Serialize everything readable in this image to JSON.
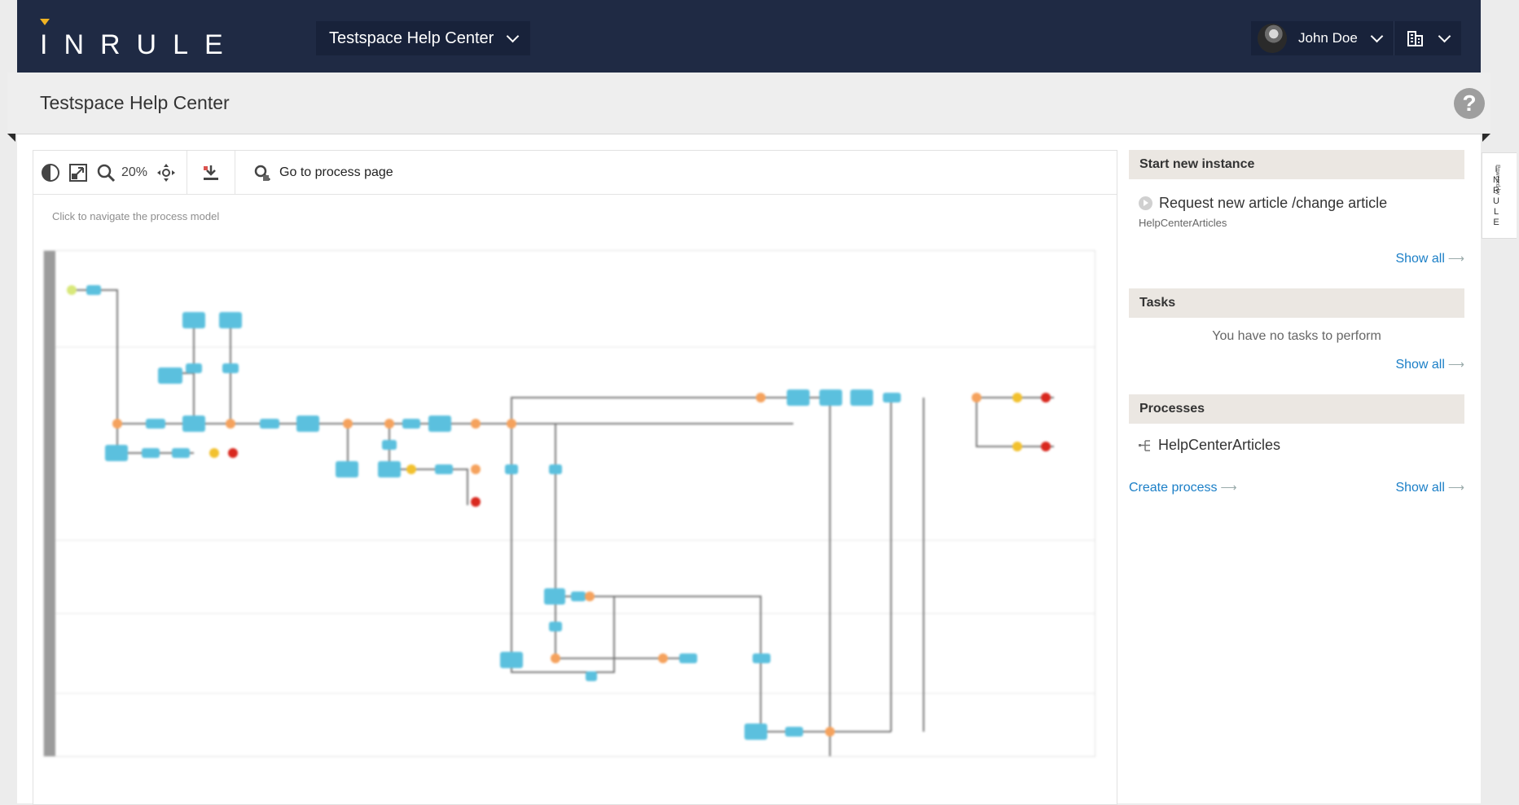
{
  "brand": {
    "logo_text": "INRULE",
    "accent": "#f0b323",
    "nav_bg": "#1f2a44"
  },
  "nav": {
    "workspace": "Testspace Help Center",
    "user_name": "John Doe"
  },
  "header": {
    "title": "Testspace Help Center",
    "help_icon": "question-icon"
  },
  "side_tab": {
    "powered_by": "Powered by",
    "brand": "INRULE"
  },
  "toolbar": {
    "zoom_level": "20%",
    "goto_label": "Go to process page",
    "icons": [
      "contrast-icon",
      "fit-to-screen-icon",
      "zoom-icon",
      "pan-icon",
      "download-icon",
      "process-page-icon"
    ]
  },
  "model": {
    "hint": "Click to navigate the process model"
  },
  "sidebar": {
    "start": {
      "title": "Start new instance",
      "item_label": "Request new article /change article",
      "item_sub": "HelpCenterArticles",
      "show_all": "Show all"
    },
    "tasks": {
      "title": "Tasks",
      "empty": "You have no tasks to perform",
      "show_all": "Show all"
    },
    "processes": {
      "title": "Processes",
      "item_label": "HelpCenterArticles",
      "create": "Create process",
      "show_all": "Show all"
    }
  }
}
